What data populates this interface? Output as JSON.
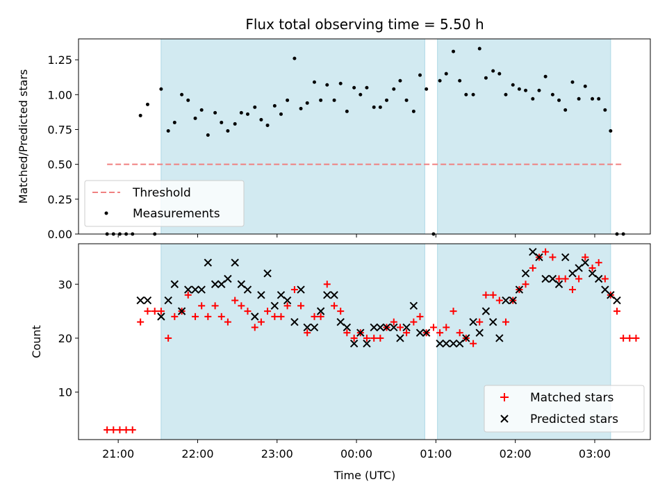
{
  "chart_data": [
    {
      "type": "scatter",
      "title": "Flux total observing time = 5.50 h",
      "xlabel": "",
      "ylabel": "Matched/Predicted stars",
      "ylim": [
        0,
        1.4
      ],
      "yticks": [
        0.0,
        0.25,
        0.5,
        0.75,
        1.0,
        1.25
      ],
      "ytick_labels": [
        "0.00",
        "0.25",
        "0.50",
        "0.75",
        "1.00",
        "1.25"
      ],
      "xlim": [
        -0.5,
        6.7
      ],
      "shaded_intervals": [
        [
          0.54,
          3.86
        ],
        [
          4.02,
          6.2
        ]
      ],
      "shade_color": "#add8e6",
      "threshold": {
        "name": "Threshold",
        "value": 0.5,
        "x_range": [
          -0.14,
          6.34
        ],
        "color": "#f08080"
      },
      "series": [
        {
          "name": "Measurements",
          "color": "#000000",
          "points": [
            [
              -0.14,
              0.0
            ],
            [
              -0.06,
              0.0
            ],
            [
              0.02,
              0.0
            ],
            [
              0.1,
              0.0
            ],
            [
              0.18,
              0.0
            ],
            [
              0.28,
              0.85
            ],
            [
              0.37,
              0.93
            ],
            [
              0.46,
              0.0
            ],
            [
              0.54,
              1.04
            ],
            [
              0.63,
              0.74
            ],
            [
              0.71,
              0.8
            ],
            [
              0.8,
              1.0
            ],
            [
              0.88,
              0.96
            ],
            [
              0.97,
              0.83
            ],
            [
              1.05,
              0.89
            ],
            [
              1.13,
              0.71
            ],
            [
              1.22,
              0.87
            ],
            [
              1.3,
              0.8
            ],
            [
              1.38,
              0.74
            ],
            [
              1.47,
              0.79
            ],
            [
              1.55,
              0.87
            ],
            [
              1.63,
              0.86
            ],
            [
              1.72,
              0.91
            ],
            [
              1.8,
              0.82
            ],
            [
              1.88,
              0.78
            ],
            [
              1.97,
              0.92
            ],
            [
              2.05,
              0.86
            ],
            [
              2.13,
              0.96
            ],
            [
              2.22,
              1.26
            ],
            [
              2.3,
              0.9
            ],
            [
              2.38,
              0.94
            ],
            [
              2.47,
              1.09
            ],
            [
              2.55,
              0.96
            ],
            [
              2.63,
              1.07
            ],
            [
              2.72,
              0.96
            ],
            [
              2.8,
              1.08
            ],
            [
              2.88,
              0.88
            ],
            [
              2.97,
              1.05
            ],
            [
              3.05,
              1.0
            ],
            [
              3.13,
              1.05
            ],
            [
              3.22,
              0.91
            ],
            [
              3.3,
              0.91
            ],
            [
              3.38,
              0.96
            ],
            [
              3.47,
              1.04
            ],
            [
              3.55,
              1.1
            ],
            [
              3.63,
              0.96
            ],
            [
              3.72,
              0.88
            ],
            [
              3.8,
              1.14
            ],
            [
              3.88,
              1.04
            ],
            [
              3.97,
              0.0
            ],
            [
              4.05,
              1.1
            ],
            [
              4.13,
              1.15
            ],
            [
              4.22,
              1.31
            ],
            [
              4.3,
              1.1
            ],
            [
              4.38,
              1.0
            ],
            [
              4.47,
              1.0
            ],
            [
              4.55,
              1.33
            ],
            [
              4.63,
              1.12
            ],
            [
              4.72,
              1.17
            ],
            [
              4.8,
              1.15
            ],
            [
              4.88,
              1.0
            ],
            [
              4.97,
              1.07
            ],
            [
              5.05,
              1.04
            ],
            [
              5.13,
              1.03
            ],
            [
              5.22,
              0.97
            ],
            [
              5.3,
              1.03
            ],
            [
              5.38,
              1.13
            ],
            [
              5.47,
              1.0
            ],
            [
              5.55,
              0.96
            ],
            [
              5.63,
              0.89
            ],
            [
              5.72,
              1.09
            ],
            [
              5.8,
              0.97
            ],
            [
              5.88,
              1.06
            ],
            [
              5.97,
              0.97
            ],
            [
              6.05,
              0.97
            ],
            [
              6.13,
              0.89
            ],
            [
              6.2,
              0.74
            ],
            [
              6.28,
              0.0
            ],
            [
              6.36,
              0.0
            ]
          ]
        }
      ],
      "legend": {
        "position": "lower-left",
        "entries": [
          "Threshold",
          "Measurements"
        ]
      }
    },
    {
      "type": "scatter",
      "title": "",
      "xlabel": "Time (UTC)",
      "ylabel": "Count",
      "ylim": [
        1.2,
        37.5
      ],
      "yticks": [
        10,
        20,
        30
      ],
      "ytick_labels": [
        "10",
        "20",
        "30"
      ],
      "xlim": [
        -0.5,
        6.7
      ],
      "xticks": [
        0,
        1,
        2,
        3,
        4,
        5,
        6
      ],
      "xtick_labels": [
        "21:00",
        "22:00",
        "23:00",
        "00:00",
        "01:00",
        "02:00",
        "03:00"
      ],
      "shaded_intervals": [
        [
          0.54,
          3.86
        ],
        [
          4.02,
          6.2
        ]
      ],
      "shade_color": "#add8e6",
      "series": [
        {
          "name": "Matched stars",
          "marker": "+",
          "color": "#ff0000",
          "points": [
            [
              -0.14,
              3
            ],
            [
              -0.06,
              3
            ],
            [
              0.02,
              3
            ],
            [
              0.1,
              3
            ],
            [
              0.18,
              3
            ],
            [
              0.28,
              23
            ],
            [
              0.37,
              25
            ],
            [
              0.46,
              25
            ],
            [
              0.54,
              25
            ],
            [
              0.63,
              20
            ],
            [
              0.71,
              24
            ],
            [
              0.8,
              25
            ],
            [
              0.88,
              28
            ],
            [
              0.97,
              24
            ],
            [
              1.05,
              26
            ],
            [
              1.13,
              24
            ],
            [
              1.22,
              26
            ],
            [
              1.3,
              24
            ],
            [
              1.38,
              23
            ],
            [
              1.47,
              27
            ],
            [
              1.55,
              26
            ],
            [
              1.63,
              25
            ],
            [
              1.72,
              22
            ],
            [
              1.8,
              23
            ],
            [
              1.88,
              25
            ],
            [
              1.97,
              24
            ],
            [
              2.05,
              24
            ],
            [
              2.13,
              26
            ],
            [
              2.22,
              29
            ],
            [
              2.3,
              26
            ],
            [
              2.38,
              21
            ],
            [
              2.47,
              24
            ],
            [
              2.55,
              24
            ],
            [
              2.63,
              30
            ],
            [
              2.72,
              26
            ],
            [
              2.8,
              25
            ],
            [
              2.88,
              21
            ],
            [
              2.97,
              20
            ],
            [
              3.05,
              21
            ],
            [
              3.13,
              20
            ],
            [
              3.22,
              20
            ],
            [
              3.3,
              20
            ],
            [
              3.38,
              22
            ],
            [
              3.47,
              23
            ],
            [
              3.55,
              22
            ],
            [
              3.63,
              21
            ],
            [
              3.72,
              23
            ],
            [
              3.8,
              24
            ],
            [
              3.88,
              21
            ],
            [
              3.97,
              22
            ],
            [
              4.05,
              21
            ],
            [
              4.13,
              22
            ],
            [
              4.22,
              25
            ],
            [
              4.3,
              21
            ],
            [
              4.38,
              20
            ],
            [
              4.47,
              19
            ],
            [
              4.55,
              23
            ],
            [
              4.63,
              28
            ],
            [
              4.72,
              28
            ],
            [
              4.8,
              27
            ],
            [
              4.88,
              23
            ],
            [
              4.97,
              27
            ],
            [
              5.05,
              29
            ],
            [
              5.13,
              30
            ],
            [
              5.22,
              33
            ],
            [
              5.3,
              35
            ],
            [
              5.38,
              36
            ],
            [
              5.47,
              35
            ],
            [
              5.55,
              31
            ],
            [
              5.63,
              31
            ],
            [
              5.72,
              29
            ],
            [
              5.8,
              31
            ],
            [
              5.88,
              35
            ],
            [
              5.97,
              33
            ],
            [
              6.05,
              34
            ],
            [
              6.13,
              31
            ],
            [
              6.2,
              28
            ],
            [
              6.28,
              25
            ],
            [
              6.36,
              20
            ],
            [
              6.44,
              20
            ],
            [
              6.52,
              20
            ]
          ]
        },
        {
          "name": "Predicted stars",
          "marker": "x",
          "color": "#000000",
          "points": [
            [
              0.28,
              27
            ],
            [
              0.37,
              27
            ],
            [
              0.54,
              24
            ],
            [
              0.63,
              27
            ],
            [
              0.71,
              30
            ],
            [
              0.8,
              25
            ],
            [
              0.88,
              29
            ],
            [
              0.97,
              29
            ],
            [
              1.05,
              29
            ],
            [
              1.13,
              34
            ],
            [
              1.22,
              30
            ],
            [
              1.3,
              30
            ],
            [
              1.38,
              31
            ],
            [
              1.47,
              34
            ],
            [
              1.55,
              30
            ],
            [
              1.63,
              29
            ],
            [
              1.72,
              24
            ],
            [
              1.8,
              28
            ],
            [
              1.88,
              32
            ],
            [
              1.97,
              26
            ],
            [
              2.05,
              28
            ],
            [
              2.13,
              27
            ],
            [
              2.22,
              23
            ],
            [
              2.3,
              29
            ],
            [
              2.38,
              22
            ],
            [
              2.47,
              22
            ],
            [
              2.55,
              25
            ],
            [
              2.63,
              28
            ],
            [
              2.72,
              28
            ],
            [
              2.8,
              23
            ],
            [
              2.88,
              22
            ],
            [
              2.97,
              19
            ],
            [
              3.05,
              21
            ],
            [
              3.13,
              19
            ],
            [
              3.22,
              22
            ],
            [
              3.3,
              22
            ],
            [
              3.38,
              22
            ],
            [
              3.47,
              22
            ],
            [
              3.55,
              20
            ],
            [
              3.63,
              22
            ],
            [
              3.72,
              26
            ],
            [
              3.8,
              21
            ],
            [
              3.88,
              21
            ],
            [
              4.05,
              19
            ],
            [
              4.13,
              19
            ],
            [
              4.22,
              19
            ],
            [
              4.3,
              19
            ],
            [
              4.38,
              20
            ],
            [
              4.47,
              23
            ],
            [
              4.55,
              21
            ],
            [
              4.63,
              25
            ],
            [
              4.72,
              23
            ],
            [
              4.8,
              20
            ],
            [
              4.88,
              27
            ],
            [
              4.97,
              27
            ],
            [
              5.05,
              29
            ],
            [
              5.13,
              32
            ],
            [
              5.22,
              36
            ],
            [
              5.3,
              35
            ],
            [
              5.38,
              31
            ],
            [
              5.47,
              31
            ],
            [
              5.55,
              30
            ],
            [
              5.63,
              35
            ],
            [
              5.72,
              32
            ],
            [
              5.8,
              33
            ],
            [
              5.88,
              34
            ],
            [
              5.97,
              32
            ],
            [
              6.05,
              31
            ],
            [
              6.13,
              29
            ],
            [
              6.2,
              28
            ],
            [
              6.28,
              27
            ]
          ]
        }
      ],
      "legend": {
        "position": "lower-right",
        "entries": [
          "Matched stars",
          "Predicted stars"
        ]
      }
    }
  ]
}
